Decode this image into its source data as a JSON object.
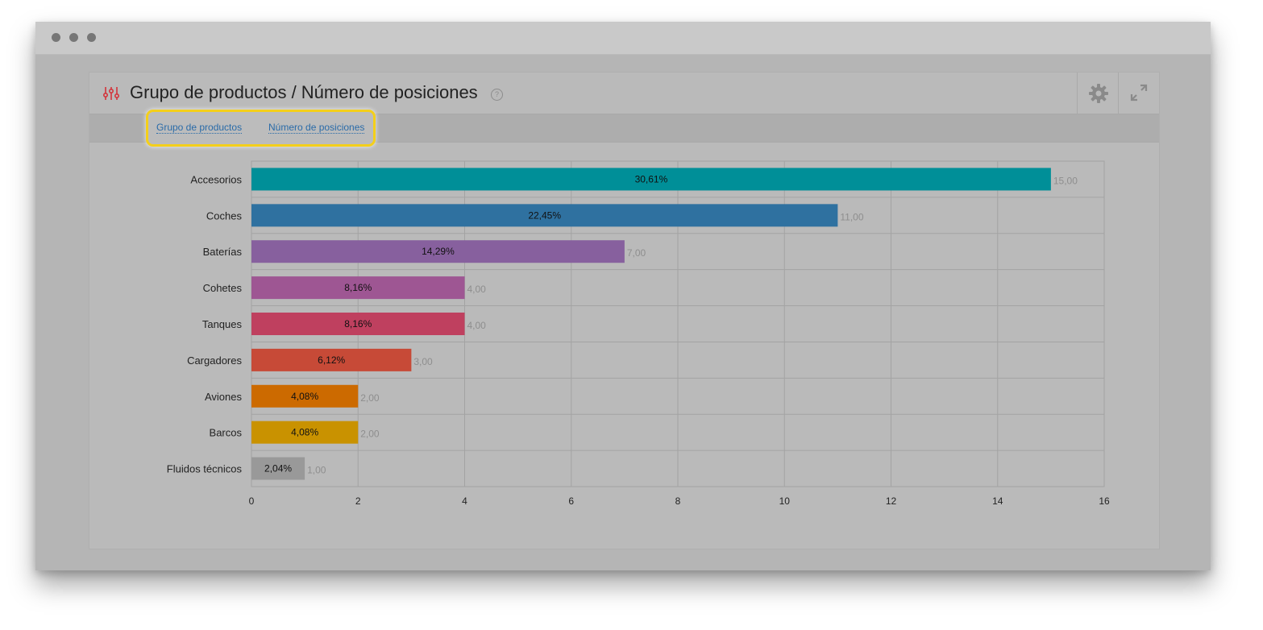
{
  "panel": {
    "title": "Grupo de productos / Número de posiciones",
    "help_icon": "question-circle-icon",
    "settings_icon": "gear-icon",
    "expand_icon": "expand-icon",
    "filter_icon": "sliders-icon"
  },
  "tabs": [
    {
      "label": "Grupo de productos"
    },
    {
      "label": "Número de posiciones"
    }
  ],
  "colors": {
    "highlight": "#f4cf1a",
    "link": "#2a6ba8"
  },
  "chart_data": {
    "type": "bar",
    "orientation": "horizontal",
    "categories": [
      "Accesorios",
      "Coches",
      "Baterías",
      "Cohetes",
      "Tanques",
      "Cargadores",
      "Aviones",
      "Barcos",
      "Fluidos técnicos"
    ],
    "values": [
      15,
      11,
      7,
      4,
      4,
      3,
      2,
      2,
      1
    ],
    "value_labels": [
      "15,00",
      "11,00",
      "7,00",
      "4,00",
      "4,00",
      "3,00",
      "2,00",
      "2,00",
      "1,00"
    ],
    "percent_labels": [
      "30,61%",
      "22,45%",
      "14,29%",
      "8,16%",
      "8,16%",
      "6,12%",
      "4,08%",
      "4,08%",
      "2,04%"
    ],
    "colors": [
      "#008f98",
      "#2f71a0",
      "#87609e",
      "#9e5693",
      "#bf405f",
      "#c74a37",
      "#cc6a00",
      "#c99200",
      "#999999"
    ],
    "xlim": [
      0,
      16
    ],
    "xticks": [
      "0",
      "2",
      "4",
      "6",
      "8",
      "10",
      "12",
      "14",
      "16"
    ],
    "grid": true
  }
}
